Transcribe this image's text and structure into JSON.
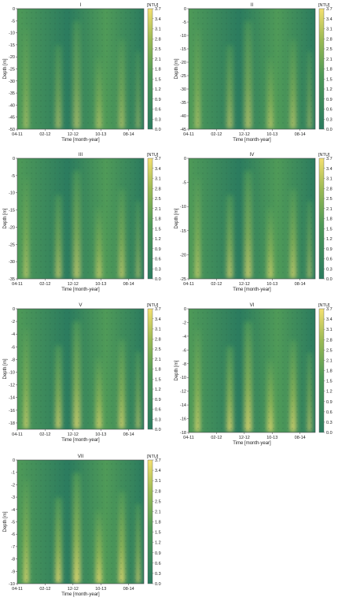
{
  "colors": {
    "low": "#2b7b5f",
    "mid": "#4f9a58",
    "high": "#9dbb55",
    "top": "#f4e070"
  },
  "chart_data": [
    {
      "type": "heatmap",
      "title": "I",
      "xlabel": "Time [month-year]",
      "ylabel": "Depth [m]",
      "x_ticks": [
        "04-11",
        "02-12",
        "12-12",
        "10-13",
        "08-14"
      ],
      "y_ticks": [
        0,
        -5,
        -10,
        -15,
        -20,
        -25,
        -30,
        -35,
        -40,
        -45,
        -50
      ],
      "ylim": [
        -50,
        0
      ],
      "colorbar": {
        "label": "[NTU]",
        "ticks": [
          "3.7",
          "3.4",
          "3.1",
          "2.8",
          "2.5",
          "2.1",
          "1.8",
          "1.5",
          "1.2",
          "0.9",
          "0.6",
          "0.3",
          "0.0"
        ],
        "range": [
          0,
          3.7
        ]
      }
    },
    {
      "type": "heatmap",
      "title": "II",
      "xlabel": "Time [month-year]",
      "ylabel": "Depth [m]",
      "x_ticks": [
        "04-11",
        "02-12",
        "12-12",
        "10-13",
        "08-14"
      ],
      "y_ticks": [
        0,
        -5,
        -10,
        -15,
        -20,
        -25,
        -30,
        -35,
        -40,
        -45
      ],
      "ylim": [
        -45,
        0
      ],
      "colorbar": {
        "label": "[NTU]",
        "ticks": [
          "3.7",
          "3.4",
          "3.1",
          "2.8",
          "2.5",
          "2.1",
          "1.8",
          "1.5",
          "1.2",
          "0.9",
          "0.6",
          "0.3",
          "0.0"
        ],
        "range": [
          0,
          3.7
        ]
      }
    },
    {
      "type": "heatmap",
      "title": "III",
      "xlabel": "Time [month-year]",
      "ylabel": "Depth [m]",
      "x_ticks": [
        "04-11",
        "02-12",
        "12-12",
        "10-13",
        "08-14"
      ],
      "y_ticks": [
        0,
        -5,
        -10,
        -15,
        -20,
        -25,
        -30,
        -35
      ],
      "ylim": [
        -35,
        0
      ],
      "colorbar": {
        "label": "[NTU]",
        "ticks": [
          "3.7",
          "3.4",
          "3.1",
          "2.8",
          "2.5",
          "2.1",
          "1.8",
          "1.5",
          "1.2",
          "0.9",
          "0.6",
          "0.3",
          "0.0"
        ],
        "range": [
          0,
          3.7
        ]
      }
    },
    {
      "type": "heatmap",
      "title": "IV",
      "xlabel": "Time [month-year]",
      "ylabel": "Depth [m]",
      "x_ticks": [
        "04-11",
        "02-12",
        "12-12",
        "10-13",
        "08-14"
      ],
      "y_ticks": [
        0,
        -5,
        -10,
        -15,
        -20,
        -25
      ],
      "ylim": [
        -25,
        0
      ],
      "colorbar": {
        "label": "[NTU]",
        "ticks": [
          "3.7",
          "3.4",
          "3.1",
          "2.8",
          "2.5",
          "2.1",
          "1.8",
          "1.5",
          "1.2",
          "0.9",
          "0.6",
          "0.3",
          "0.0"
        ],
        "range": [
          0,
          3.7
        ]
      }
    },
    {
      "type": "heatmap",
      "title": "V",
      "xlabel": "Time [month-year]",
      "ylabel": "Depth [m]",
      "x_ticks": [
        "04-11",
        "02-12",
        "12-12",
        "10-13",
        "08-14"
      ],
      "y_ticks": [
        0,
        -2,
        -4,
        -6,
        -8,
        -10,
        -12,
        -14,
        -16,
        -18
      ],
      "ylim": [
        -19,
        0
      ],
      "colorbar": {
        "label": "[NTU]",
        "ticks": [
          "3.7",
          "3.4",
          "3.1",
          "2.8",
          "2.5",
          "2.1",
          "1.8",
          "1.5",
          "1.2",
          "0.9",
          "0.6",
          "0.3",
          "0.0"
        ],
        "range": [
          0,
          3.7
        ]
      }
    },
    {
      "type": "heatmap",
      "title": "VI",
      "xlabel": "Time [month-year]",
      "ylabel": "Depth [m]",
      "x_ticks": [
        "04-11",
        "02-12",
        "12-12",
        "10-13",
        "08-14"
      ],
      "y_ticks": [
        0,
        -2,
        -4,
        -6,
        -8,
        -10,
        -12,
        -14,
        -16,
        -18
      ],
      "ylim": [
        -18,
        0
      ],
      "colorbar": {
        "label": "[NTU]",
        "ticks": [
          "3.7",
          "3.4",
          "3.1",
          "2.8",
          "2.5",
          "2.1",
          "1.8",
          "1.5",
          "1.2",
          "0.9",
          "0.6",
          "0.3",
          "0.0"
        ],
        "range": [
          0,
          3.7
        ]
      }
    },
    {
      "type": "heatmap",
      "title": "VII",
      "xlabel": "Time [month-year]",
      "ylabel": "Depth [m]",
      "x_ticks": [
        "04-11",
        "02-12",
        "12-12",
        "10-13",
        "08-14"
      ],
      "y_ticks": [
        0,
        -1,
        -2,
        -3,
        -4,
        -5,
        -6,
        -7,
        -8,
        -9,
        -10
      ],
      "ylim": [
        -10,
        0
      ],
      "colorbar": {
        "label": "[NTU]",
        "ticks": [
          "3.7",
          "3.4",
          "3.1",
          "2.8",
          "2.5",
          "2.1",
          "1.8",
          "1.5",
          "1.2",
          "0.9",
          "0.6",
          "0.3",
          "0.0"
        ],
        "range": [
          0,
          3.7
        ]
      }
    }
  ]
}
